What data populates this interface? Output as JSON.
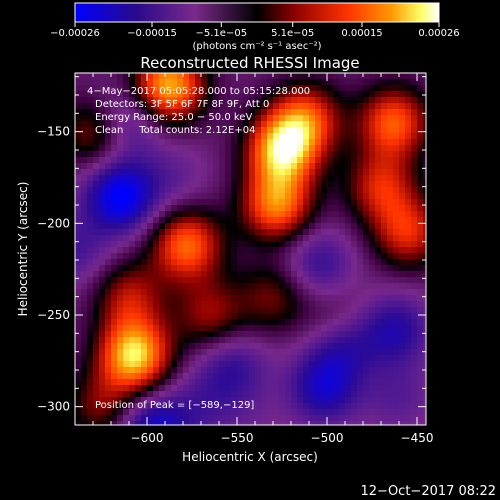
{
  "chart_data": {
    "type": "heatmap",
    "title": "Reconstructed RHESSI Image",
    "xlabel": "Heliocentric X (arcsec)",
    "ylabel": "Heliocentric Y (arcsec)",
    "xlim": [
      -640,
      -445
    ],
    "ylim": [
      -310,
      -118
    ],
    "xticks": [
      -600,
      -550,
      -500,
      -450
    ],
    "xtick_labels": [
      "−600",
      "−550",
      "−500",
      "−450"
    ],
    "yticks": [
      -300,
      -250,
      -200,
      -150
    ],
    "ytick_labels": [
      "−300",
      "−250",
      "−200",
      "−150"
    ],
    "colorbar": {
      "label": "(photons cm⁻² s⁻¹ asec⁻²)",
      "range": [
        -0.00026,
        0.00026
      ],
      "ticks": [
        -0.00026,
        -0.00015,
        -5.1e-05,
        5.1e-05,
        0.00015,
        0.00026
      ],
      "tick_labels": [
        "−0.00026",
        "−0.00015",
        "−5.1e−05",
        "5.1e−05",
        "0.00015",
        "0.00026"
      ],
      "colors": [
        "#0000ff",
        "#330066",
        "#7a2a8a",
        "#000000",
        "#8a0000",
        "#ff3300",
        "#ff9900",
        "#ffff66",
        "#ffffff"
      ]
    },
    "annotations": [
      "4−May−2017 05:05:28.000 to 05:15:28.000",
      "Detectors: 3F 5F 6F 7F 8F 9F, Att 0",
      "Energy Range: 25.0 − 50.0 keV",
      "Clean     Total counts: 2.12E+04",
      "Position of Peak = [−589,−129]"
    ],
    "peak": {
      "x": -589,
      "y": -129
    },
    "blobs": [
      {
        "x": -607,
        "y": -272,
        "value": 0.00026
      },
      {
        "x": -588,
        "y": -125,
        "value": 0.00024
      },
      {
        "x": -578,
        "y": -212,
        "value": 0.00019
      },
      {
        "x": -525,
        "y": -160,
        "value": 0.00024
      },
      {
        "x": -528,
        "y": -190,
        "value": 0.0002
      },
      {
        "x": -512,
        "y": -143,
        "value": 0.00016
      },
      {
        "x": -463,
        "y": -145,
        "value": 0.00018
      },
      {
        "x": -455,
        "y": -205,
        "value": 0.00014
      },
      {
        "x": -470,
        "y": -180,
        "value": 0.00013
      },
      {
        "x": -628,
        "y": -150,
        "value": 0.00012
      },
      {
        "x": -565,
        "y": -250,
        "value": 0.0001
      },
      {
        "x": -530,
        "y": -240,
        "value": 8e-05
      },
      {
        "x": -610,
        "y": -240,
        "value": 0.00011
      },
      {
        "x": -625,
        "y": -300,
        "value": 9e-05
      },
      {
        "x": -495,
        "y": -255,
        "value": 6e-05
      },
      {
        "x": -615,
        "y": -185,
        "value": -0.00022
      },
      {
        "x": -613,
        "y": -145,
        "value": -0.00014
      },
      {
        "x": -598,
        "y": -312,
        "value": -0.00018
      },
      {
        "x": -505,
        "y": -222,
        "value": -0.00012
      },
      {
        "x": -492,
        "y": -265,
        "value": -0.00015
      },
      {
        "x": -462,
        "y": -258,
        "value": -0.00014
      },
      {
        "x": -502,
        "y": -290,
        "value": -0.00016
      },
      {
        "x": -553,
        "y": -278,
        "value": -0.00012
      },
      {
        "x": -572,
        "y": -300,
        "value": -8e-05
      },
      {
        "x": -585,
        "y": -175,
        "value": -7e-05
      },
      {
        "x": -640,
        "y": -215,
        "value": -0.0001
      },
      {
        "x": -460,
        "y": -295,
        "value": -8e-05
      },
      {
        "x": -545,
        "y": -305,
        "value": -5e-05
      }
    ]
  },
  "footer": {
    "datetime": "12−Oct−2017 08:22"
  }
}
